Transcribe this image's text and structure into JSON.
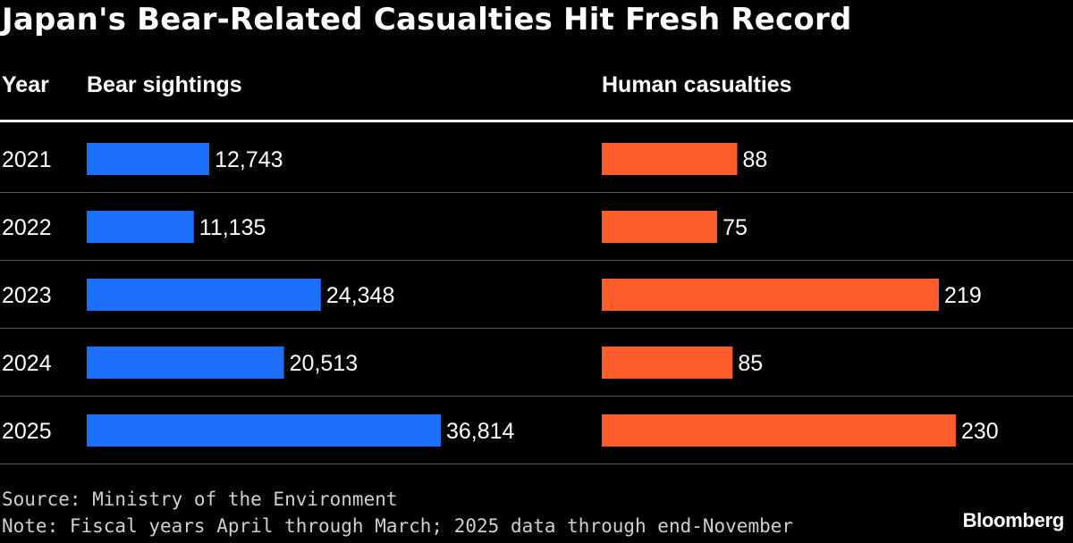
{
  "chart_data": {
    "type": "bar",
    "title": "Japan's Bear-Related Casualties Hit Fresh Record",
    "row_header": "Year",
    "categories": [
      "2021",
      "2022",
      "2023",
      "2024",
      "2025"
    ],
    "series": [
      {
        "name": "Bear sightings",
        "values": [
          12743,
          11135,
          24348,
          20513,
          36814
        ],
        "labels": [
          "12,743",
          "11,135",
          "24,348",
          "20,513",
          "36,814"
        ],
        "color": "#1f6fff"
      },
      {
        "name": "Human casualties",
        "values": [
          88,
          75,
          219,
          85,
          230
        ],
        "labels": [
          "88",
          "75",
          "219",
          "85",
          "230"
        ],
        "color": "#ff5c2b"
      }
    ],
    "source": "Source: Ministry of the Environment",
    "note": "Note: Fiscal years April through March; 2025 data through end-November",
    "logo": "Bloomberg"
  }
}
